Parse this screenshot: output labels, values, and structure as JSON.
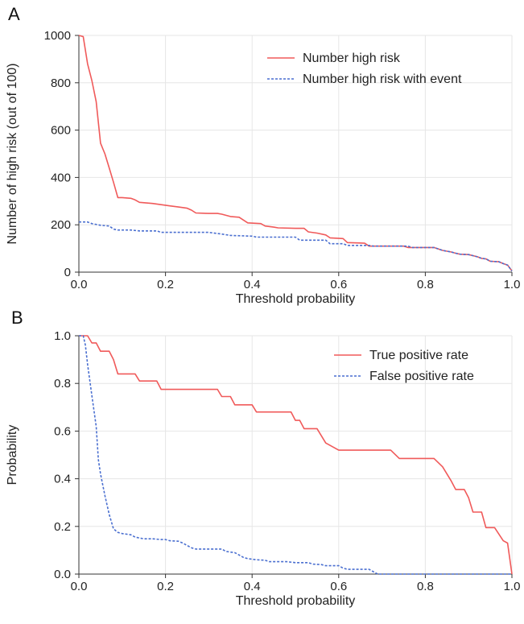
{
  "figure": {
    "panels": [
      {
        "letter": "A"
      },
      {
        "letter": "B"
      }
    ]
  },
  "colors": {
    "red": "#f05a5a",
    "blue": "#4a6fd0",
    "grid": "#e6e6e6",
    "axis": "#333333"
  },
  "chart_data": [
    {
      "type": "line",
      "panel": "A",
      "xlabel": "Threshold probability",
      "ylabel": "Number of high risk (out of 100)",
      "xlim": [
        0,
        1
      ],
      "ylim": [
        0,
        1000
      ],
      "x_ticks": [
        "0.0",
        "0.2",
        "0.4",
        "0.6",
        "0.8",
        "1.0"
      ],
      "x_tick_values": [
        0,
        0.2,
        0.4,
        0.6,
        0.8,
        1.0
      ],
      "y_ticks": [
        "0",
        "200",
        "400",
        "600",
        "800",
        "1000"
      ],
      "y_tick_values": [
        0,
        200,
        400,
        600,
        800,
        1000
      ],
      "grid": true,
      "legend_position": "top-right",
      "series": [
        {
          "name": "Number high risk",
          "color": "#f05a5a",
          "style": "solid",
          "points": [
            [
              0,
              1000
            ],
            [
              0.01,
              995
            ],
            [
              0.02,
              880
            ],
            [
              0.03,
              810
            ],
            [
              0.04,
              720
            ],
            [
              0.05,
              545
            ],
            [
              0.06,
              500
            ],
            [
              0.07,
              440
            ],
            [
              0.08,
              380
            ],
            [
              0.09,
              315
            ],
            [
              0.1,
              315
            ],
            [
              0.12,
              312
            ],
            [
              0.13,
              305
            ],
            [
              0.14,
              295
            ],
            [
              0.17,
              290
            ],
            [
              0.19,
              285
            ],
            [
              0.21,
              280
            ],
            [
              0.23,
              275
            ],
            [
              0.25,
              270
            ],
            [
              0.26,
              262
            ],
            [
              0.27,
              250
            ],
            [
              0.3,
              248
            ],
            [
              0.32,
              248
            ],
            [
              0.33,
              245
            ],
            [
              0.35,
              235
            ],
            [
              0.37,
              232
            ],
            [
              0.38,
              220
            ],
            [
              0.39,
              208
            ],
            [
              0.42,
              205
            ],
            [
              0.43,
              195
            ],
            [
              0.45,
              190
            ],
            [
              0.46,
              187
            ],
            [
              0.5,
              185
            ],
            [
              0.52,
              185
            ],
            [
              0.53,
              170
            ],
            [
              0.55,
              165
            ],
            [
              0.57,
              157
            ],
            [
              0.58,
              145
            ],
            [
              0.61,
              142
            ],
            [
              0.62,
              125
            ],
            [
              0.65,
              123
            ],
            [
              0.66,
              122
            ],
            [
              0.67,
              110
            ],
            [
              0.75,
              110
            ],
            [
              0.76,
              104
            ],
            [
              0.82,
              104
            ],
            [
              0.84,
              92
            ],
            [
              0.86,
              85
            ],
            [
              0.87,
              80
            ],
            [
              0.88,
              76
            ],
            [
              0.9,
              74
            ],
            [
              0.92,
              65
            ],
            [
              0.93,
              58
            ],
            [
              0.94,
              56
            ],
            [
              0.95,
              46
            ],
            [
              0.97,
              44
            ],
            [
              0.98,
              36
            ],
            [
              0.99,
              30
            ],
            [
              1.0,
              5
            ]
          ]
        },
        {
          "name": "Number high risk with event",
          "color": "#4a6fd0",
          "style": "dashed",
          "points": [
            [
              0,
              212
            ],
            [
              0.02,
              212
            ],
            [
              0.03,
              205
            ],
            [
              0.05,
              198
            ],
            [
              0.07,
              195
            ],
            [
              0.08,
              182
            ],
            [
              0.09,
              178
            ],
            [
              0.12,
              178
            ],
            [
              0.14,
              174
            ],
            [
              0.18,
              174
            ],
            [
              0.19,
              168
            ],
            [
              0.3,
              168
            ],
            [
              0.33,
              161
            ],
            [
              0.35,
              155
            ],
            [
              0.4,
              152
            ],
            [
              0.41,
              148
            ],
            [
              0.5,
              148
            ],
            [
              0.51,
              135
            ],
            [
              0.57,
              135
            ],
            [
              0.58,
              120
            ],
            [
              0.61,
              120
            ],
            [
              0.62,
              113
            ],
            [
              0.67,
              113
            ],
            [
              0.68,
              110
            ],
            [
              0.76,
              110
            ],
            [
              0.77,
              104
            ],
            [
              0.82,
              104
            ],
            [
              0.84,
              92
            ],
            [
              0.86,
              85
            ],
            [
              0.87,
              80
            ],
            [
              0.88,
              76
            ],
            [
              0.9,
              74
            ],
            [
              0.92,
              65
            ],
            [
              0.93,
              58
            ],
            [
              0.94,
              56
            ],
            [
              0.95,
              46
            ],
            [
              0.97,
              44
            ],
            [
              0.98,
              36
            ],
            [
              0.99,
              30
            ],
            [
              1.0,
              5
            ]
          ]
        }
      ]
    },
    {
      "type": "line",
      "panel": "B",
      "xlabel": "Threshold probability",
      "ylabel": "Probability",
      "xlim": [
        0,
        1
      ],
      "ylim": [
        0,
        1
      ],
      "x_ticks": [
        "0.0",
        "0.2",
        "0.4",
        "0.6",
        "0.8",
        "1.0"
      ],
      "x_tick_values": [
        0,
        0.2,
        0.4,
        0.6,
        0.8,
        1.0
      ],
      "y_ticks": [
        "0.0",
        "0.2",
        "0.4",
        "0.6",
        "0.8",
        "1.0"
      ],
      "y_tick_values": [
        0,
        0.2,
        0.4,
        0.6,
        0.8,
        1.0
      ],
      "grid": true,
      "legend_position": "top-right",
      "series": [
        {
          "name": "True positive rate",
          "color": "#f05a5a",
          "style": "solid",
          "points": [
            [
              0,
              1.0
            ],
            [
              0.02,
              1.0
            ],
            [
              0.03,
              0.97
            ],
            [
              0.04,
              0.97
            ],
            [
              0.05,
              0.935
            ],
            [
              0.07,
              0.935
            ],
            [
              0.08,
              0.9
            ],
            [
              0.09,
              0.84
            ],
            [
              0.12,
              0.84
            ],
            [
              0.13,
              0.84
            ],
            [
              0.14,
              0.81
            ],
            [
              0.18,
              0.81
            ],
            [
              0.19,
              0.775
            ],
            [
              0.32,
              0.775
            ],
            [
              0.33,
              0.745
            ],
            [
              0.35,
              0.745
            ],
            [
              0.36,
              0.71
            ],
            [
              0.4,
              0.71
            ],
            [
              0.41,
              0.68
            ],
            [
              0.49,
              0.68
            ],
            [
              0.5,
              0.645
            ],
            [
              0.51,
              0.645
            ],
            [
              0.52,
              0.61
            ],
            [
              0.55,
              0.61
            ],
            [
              0.56,
              0.58
            ],
            [
              0.57,
              0.55
            ],
            [
              0.6,
              0.52
            ],
            [
              0.72,
              0.52
            ],
            [
              0.74,
              0.485
            ],
            [
              0.82,
              0.485
            ],
            [
              0.84,
              0.45
            ],
            [
              0.86,
              0.39
            ],
            [
              0.87,
              0.355
            ],
            [
              0.89,
              0.355
            ],
            [
              0.9,
              0.32
            ],
            [
              0.91,
              0.26
            ],
            [
              0.93,
              0.26
            ],
            [
              0.94,
              0.195
            ],
            [
              0.96,
              0.195
            ],
            [
              0.98,
              0.14
            ],
            [
              0.99,
              0.13
            ],
            [
              1.0,
              0.0
            ]
          ]
        },
        {
          "name": "False positive rate",
          "color": "#4a6fd0",
          "style": "dashed",
          "points": [
            [
              0,
              1.0
            ],
            [
              0.01,
              1.0
            ],
            [
              0.015,
              0.96
            ],
            [
              0.02,
              0.88
            ],
            [
              0.03,
              0.75
            ],
            [
              0.04,
              0.62
            ],
            [
              0.045,
              0.48
            ],
            [
              0.05,
              0.42
            ],
            [
              0.06,
              0.33
            ],
            [
              0.07,
              0.25
            ],
            [
              0.08,
              0.19
            ],
            [
              0.09,
              0.175
            ],
            [
              0.1,
              0.17
            ],
            [
              0.12,
              0.165
            ],
            [
              0.13,
              0.155
            ],
            [
              0.15,
              0.148
            ],
            [
              0.17,
              0.148
            ],
            [
              0.19,
              0.145
            ],
            [
              0.2,
              0.145
            ],
            [
              0.21,
              0.14
            ],
            [
              0.23,
              0.138
            ],
            [
              0.24,
              0.13
            ],
            [
              0.25,
              0.12
            ],
            [
              0.26,
              0.11
            ],
            [
              0.27,
              0.105
            ],
            [
              0.33,
              0.105
            ],
            [
              0.34,
              0.095
            ],
            [
              0.36,
              0.09
            ],
            [
              0.37,
              0.08
            ],
            [
              0.38,
              0.07
            ],
            [
              0.39,
              0.065
            ],
            [
              0.41,
              0.06
            ],
            [
              0.43,
              0.058
            ],
            [
              0.44,
              0.052
            ],
            [
              0.48,
              0.052
            ],
            [
              0.5,
              0.048
            ],
            [
              0.53,
              0.048
            ],
            [
              0.54,
              0.042
            ],
            [
              0.56,
              0.04
            ],
            [
              0.57,
              0.035
            ],
            [
              0.6,
              0.035
            ],
            [
              0.61,
              0.025
            ],
            [
              0.62,
              0.02
            ],
            [
              0.67,
              0.02
            ],
            [
              0.68,
              0.01
            ],
            [
              0.69,
              0.0
            ],
            [
              1.0,
              0.0
            ]
          ]
        }
      ]
    }
  ]
}
